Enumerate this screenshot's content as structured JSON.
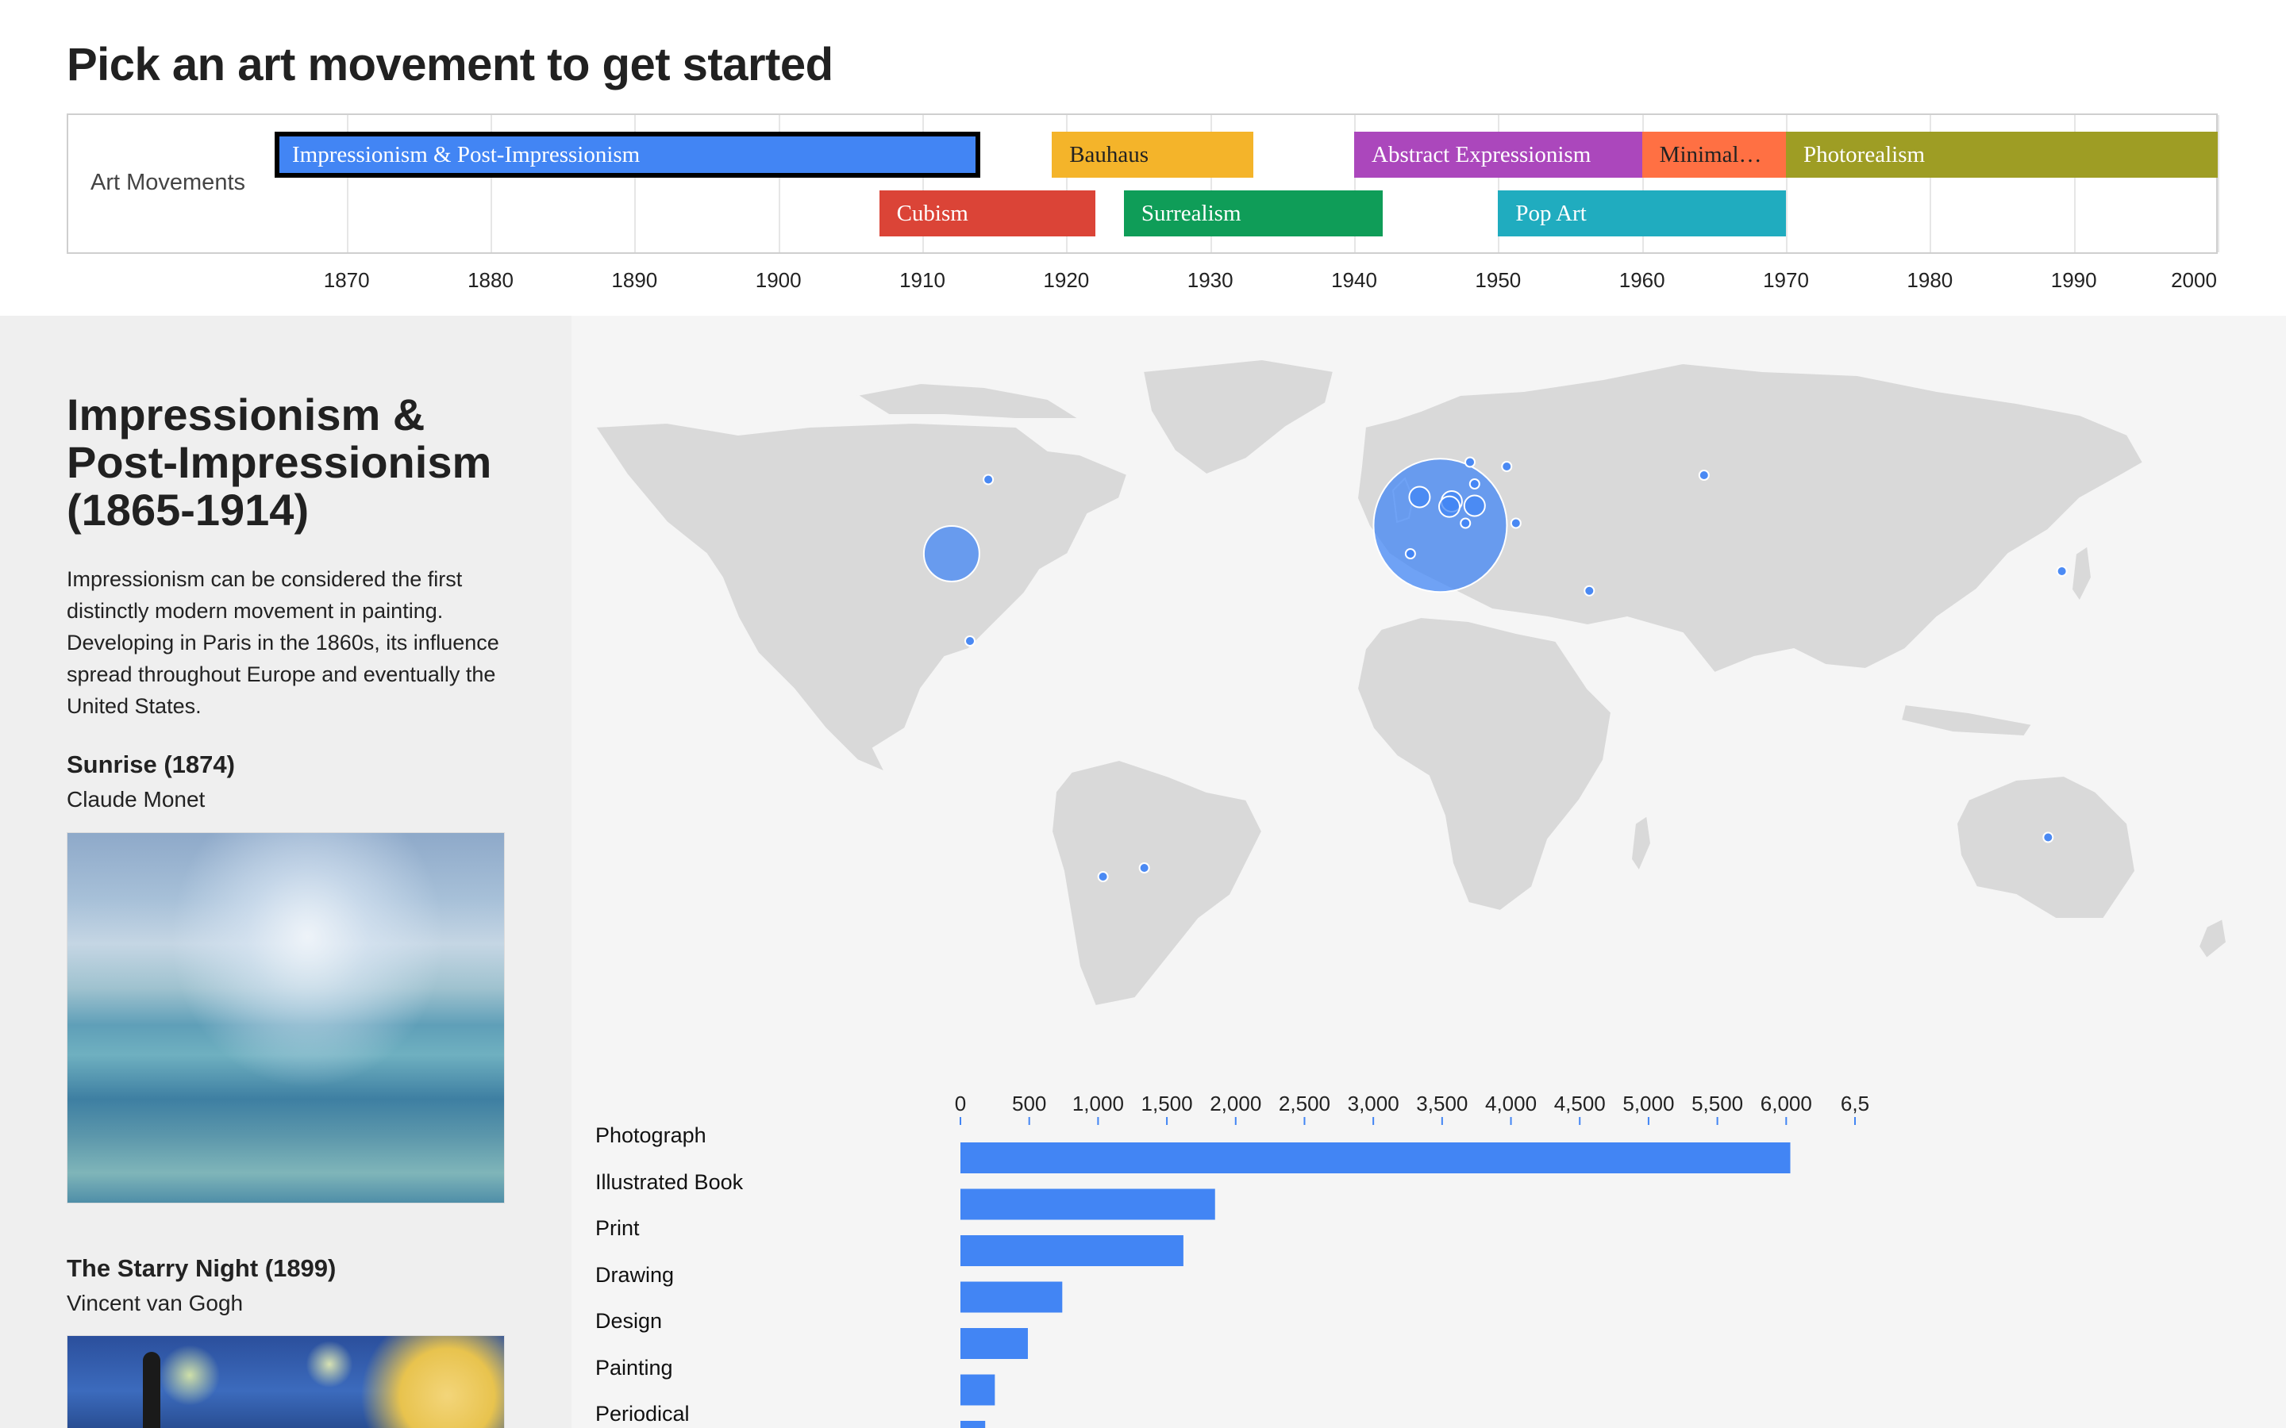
{
  "page": {
    "title": "Pick an art movement to get started"
  },
  "timeline": {
    "row_label": "Art Movements",
    "year_start": 1865,
    "year_end": 2000,
    "ticks": [
      "1870",
      "1880",
      "1890",
      "1900",
      "1910",
      "1920",
      "1930",
      "1940",
      "1950",
      "1960",
      "1970",
      "1980",
      "1990",
      "2000"
    ],
    "movements": [
      {
        "label": "Impressionism & Post-Impressionism",
        "start": 1865,
        "end": 1914,
        "color": "#4285f4",
        "row": 0,
        "selected": true
      },
      {
        "label": "Bauhaus",
        "start": 1919,
        "end": 1933,
        "color": "#f4b42a",
        "row": 0,
        "dark_text": true
      },
      {
        "label": "Abstract Expressionism",
        "start": 1940,
        "end": 1960,
        "color": "#ab47bc",
        "row": 0
      },
      {
        "label": "Minimal…",
        "start": 1960,
        "end": 1970,
        "color": "#ff7043",
        "row": 0,
        "dark_text": true
      },
      {
        "label": "Photorealism",
        "start": 1970,
        "end": 2000,
        "color": "#9e9d24",
        "row": 0
      },
      {
        "label": "Cubism",
        "start": 1907,
        "end": 1922,
        "color": "#db4437",
        "row": 1
      },
      {
        "label": "Surrealism",
        "start": 1924,
        "end": 1942,
        "color": "#0f9d58",
        "row": 1
      },
      {
        "label": "Pop Art",
        "start": 1950,
        "end": 1970,
        "color": "#20acbf",
        "row": 1
      }
    ]
  },
  "movement": {
    "title": "Impressionism & Post-Impressionism (1865-1914)",
    "description": "Impressionism can be considered the first distinctly modern movement in painting. Developing in Paris in the 1860s, its influence spread throughout Europe and eventually the United States.",
    "artworks": [
      {
        "title": "Sunrise (1874)",
        "artist": "Claude Monet"
      },
      {
        "title": "The Starry Night (1899)",
        "artist": "Vincent van Gogh"
      }
    ]
  },
  "map": {
    "land_color": "#d9d9d9",
    "bubble_color": "#4285f4",
    "bubbles": [
      {
        "place": "France",
        "lon": 2.5,
        "lat": 46.5,
        "size": "large"
      },
      {
        "place": "United States",
        "lon": -104,
        "lat": 40,
        "size": "medium"
      },
      {
        "place": "Netherlands",
        "lon": 5,
        "lat": 52,
        "size": "small"
      },
      {
        "place": "Belgium",
        "lon": 4.5,
        "lat": 50.8,
        "size": "small"
      },
      {
        "place": "United Kingdom",
        "lon": -2,
        "lat": 53,
        "size": "small"
      },
      {
        "place": "Germany",
        "lon": 10,
        "lat": 51,
        "size": "small"
      },
      {
        "place": "Russia",
        "lon": 60,
        "lat": 58,
        "size": "tiny"
      },
      {
        "place": "Japan",
        "lon": 138,
        "lat": 36,
        "size": "tiny"
      },
      {
        "place": "Australia",
        "lon": 135,
        "lat": -25,
        "size": "tiny"
      },
      {
        "place": "Mexico",
        "lon": -100,
        "lat": 20,
        "size": "tiny"
      },
      {
        "place": "Argentina",
        "lon": -62,
        "lat": -32,
        "size": "tiny"
      },
      {
        "place": "Chile",
        "lon": -71,
        "lat": -34,
        "size": "tiny"
      },
      {
        "place": "Canada",
        "lon": -96,
        "lat": 57,
        "size": "tiny"
      },
      {
        "place": "Norway",
        "lon": 9,
        "lat": 61,
        "size": "tiny"
      },
      {
        "place": "Sweden",
        "lon": 17,
        "lat": 60,
        "size": "tiny"
      },
      {
        "place": "Israel",
        "lon": 35,
        "lat": 31.5,
        "size": "tiny"
      },
      {
        "place": "Hungary",
        "lon": 19,
        "lat": 47,
        "size": "tiny"
      },
      {
        "place": "Switzerland",
        "lon": 8,
        "lat": 47,
        "size": "tiny"
      },
      {
        "place": "Denmark",
        "lon": 10,
        "lat": 56,
        "size": "tiny"
      },
      {
        "place": "Spain",
        "lon": -4,
        "lat": 40,
        "size": "tiny"
      }
    ]
  },
  "chart_data": {
    "type": "bar",
    "orientation": "horizontal",
    "categories": [
      "Photograph",
      "Illustrated Book",
      "Print",
      "Drawing",
      "Design",
      "Painting",
      "Periodical"
    ],
    "values": [
      6030,
      1850,
      1620,
      740,
      490,
      250,
      180
    ],
    "xlim": [
      0,
      6500
    ],
    "ticks": [
      "0",
      "500",
      "1,000",
      "1,500",
      "2,000",
      "2,500",
      "3,000",
      "3,500",
      "4,000",
      "4,500",
      "5,000",
      "5,500",
      "6,000",
      "6,5"
    ],
    "axis_position": "top",
    "bar_color": "#4285f4"
  }
}
